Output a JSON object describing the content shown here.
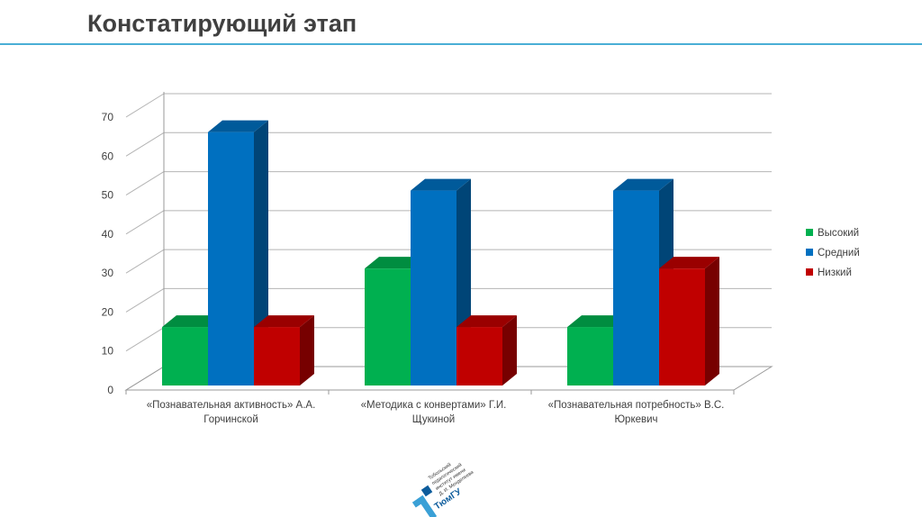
{
  "slide": {
    "title": "Констатирующий этап"
  },
  "logo": {
    "lines": [
      "Тобольский",
      "педагогический",
      "институт имени",
      "Д. И. Менделеева"
    ],
    "mark": "ТюмГУ"
  },
  "colors": {
    "accent_rule": "#4aaed6",
    "title_text": "#404040"
  },
  "chart_data": {
    "type": "bar",
    "categories": [
      [
        "«Познавательная активность» А.А.",
        "Горчинской"
      ],
      [
        "«Методика с конвертами» Г.И.",
        "Щукиной"
      ],
      [
        "«Познавательная потребность» В.С.",
        "Юркевич"
      ]
    ],
    "series": [
      {
        "name": "Высокий",
        "color": "#00b050",
        "values": [
          15,
          30,
          15
        ]
      },
      {
        "name": "Средний",
        "color": "#0070c0",
        "values": [
          65,
          50,
          50
        ]
      },
      {
        "name": "Низкий",
        "color": "#c00000",
        "values": [
          15,
          15,
          30
        ]
      }
    ],
    "ylim": [
      0,
      70
    ],
    "yticks": [
      "0",
      "10",
      "20",
      "30",
      "40",
      "50",
      "60",
      "70"
    ],
    "grid": true,
    "legend_position": "right",
    "projection": "3d-perspective"
  }
}
